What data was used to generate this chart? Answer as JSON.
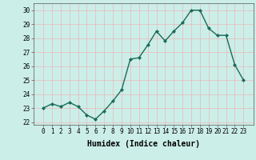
{
  "x": [
    0,
    1,
    2,
    3,
    4,
    5,
    6,
    7,
    8,
    9,
    10,
    11,
    12,
    13,
    14,
    15,
    16,
    17,
    18,
    19,
    20,
    21,
    22,
    23
  ],
  "y": [
    23.0,
    23.3,
    23.1,
    23.4,
    23.1,
    22.5,
    22.2,
    22.8,
    23.5,
    24.3,
    26.5,
    26.6,
    27.5,
    28.5,
    27.8,
    28.5,
    29.1,
    30.0,
    30.0,
    28.7,
    28.2,
    28.2,
    26.1,
    25.0
  ],
  "line_color": "#1a6b5a",
  "marker": "D",
  "marker_size": 2.0,
  "line_width": 1.0,
  "xlabel": "Humidex (Indice chaleur)",
  "ylim": [
    21.8,
    30.5
  ],
  "yticks": [
    22,
    23,
    24,
    25,
    26,
    27,
    28,
    29,
    30
  ],
  "xticks": [
    0,
    1,
    2,
    3,
    4,
    5,
    6,
    7,
    8,
    9,
    10,
    11,
    12,
    13,
    14,
    15,
    16,
    17,
    18,
    19,
    20,
    21,
    22,
    23
  ],
  "bg_color": "#cceee8",
  "grid_color": "#e8b8b8",
  "xlabel_fontsize": 7,
  "tick_fontsize": 5.5
}
